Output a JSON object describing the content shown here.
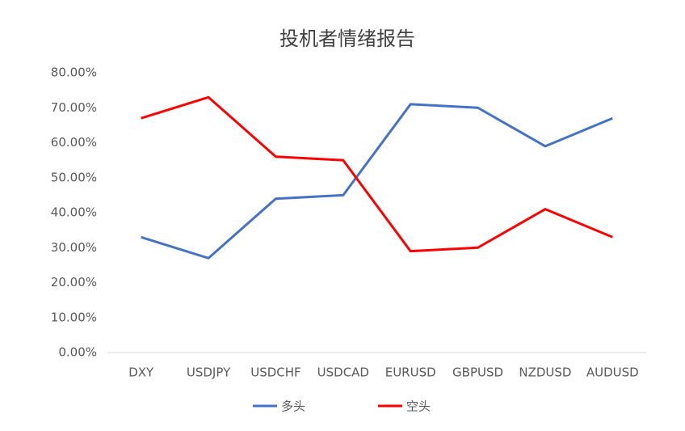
{
  "chart_data": {
    "type": "line",
    "title": "投机者情绪报告",
    "categories": [
      "DXY",
      "USDJPY",
      "USDCHF",
      "USDCAD",
      "EURUSD",
      "GBPUSD",
      "NZDUSD",
      "AUDUSD"
    ],
    "series": [
      {
        "name": "多头",
        "color": "#4472c4",
        "values": [
          33,
          27,
          44,
          45,
          71,
          70,
          59,
          67
        ]
      },
      {
        "name": "空头",
        "color": "#ff0000",
        "values": [
          67,
          73,
          56,
          55,
          29,
          30,
          41,
          33
        ]
      }
    ],
    "ylim": [
      0,
      80
    ],
    "yticks": [
      {
        "value": 0,
        "label": "0.00%"
      },
      {
        "value": 10,
        "label": "10.00%"
      },
      {
        "value": 20,
        "label": "20.00%"
      },
      {
        "value": 30,
        "label": "30.00%"
      },
      {
        "value": 40,
        "label": "40.00%"
      },
      {
        "value": 50,
        "label": "50.00%"
      },
      {
        "value": 60,
        "label": "60.00%"
      },
      {
        "value": 70,
        "label": "70.00%"
      },
      {
        "value": 80,
        "label": "80.00%"
      }
    ],
    "grid": false,
    "legend": "bottom"
  }
}
